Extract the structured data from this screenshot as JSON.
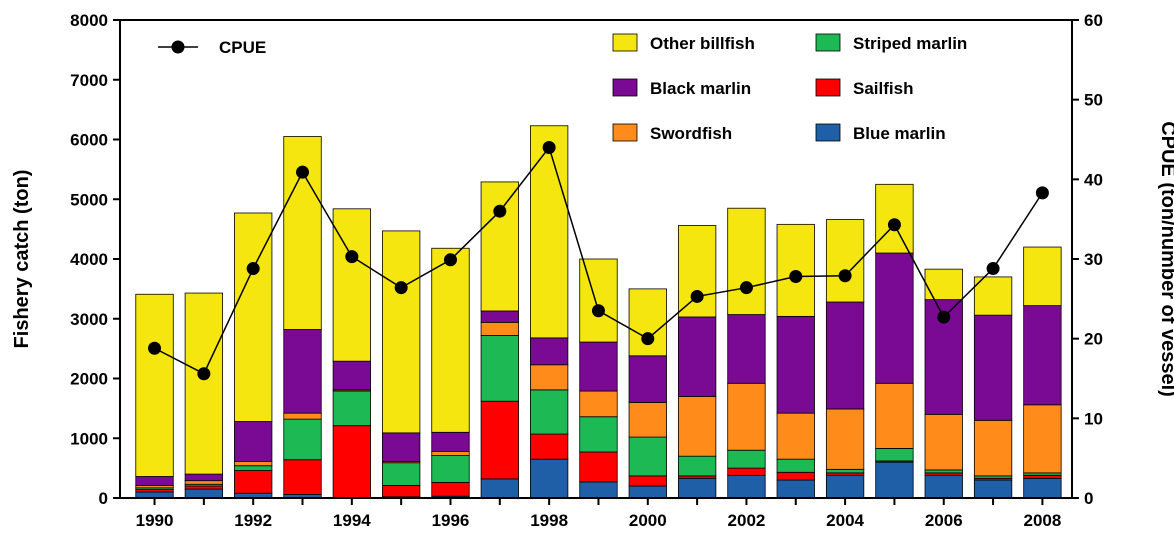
{
  "chart_data": {
    "type": "bar",
    "stacked": true,
    "x": [
      1990,
      1991,
      1992,
      1993,
      1994,
      1995,
      1996,
      1997,
      1998,
      1999,
      2000,
      2001,
      2002,
      2003,
      2004,
      2005,
      2006,
      2007,
      2008
    ],
    "x_tick_labels": [
      "1990",
      "1992",
      "1994",
      "1996",
      "1998",
      "2000",
      "2002",
      "2004",
      "2006",
      "2008"
    ],
    "ylabel": "Fishery catch (ton)",
    "ylim": [
      0,
      8000
    ],
    "y_ticks": [
      0,
      1000,
      2000,
      3000,
      4000,
      5000,
      6000,
      7000,
      8000
    ],
    "y2label": "CPUE (ton/number of vessel)",
    "y2lim": [
      0,
      60
    ],
    "y2_ticks": [
      0,
      10,
      20,
      30,
      40,
      50,
      60
    ],
    "grid": false,
    "legend_position": "top",
    "series": [
      {
        "name": "Blue marlin",
        "color": "#1f5fa8",
        "values": [
          100,
          150,
          80,
          60,
          0,
          20,
          30,
          320,
          650,
          270,
          200,
          330,
          380,
          300,
          380,
          600,
          380,
          300,
          330
        ]
      },
      {
        "name": "Sailfish",
        "color": "#ff0000",
        "values": [
          40,
          50,
          380,
          580,
          1210,
          190,
          230,
          1300,
          420,
          500,
          170,
          40,
          120,
          130,
          40,
          20,
          40,
          30,
          50
        ]
      },
      {
        "name": "Striped marlin",
        "color": "#1db954",
        "values": [
          30,
          30,
          80,
          680,
          580,
          380,
          450,
          1100,
          740,
          590,
          650,
          330,
          300,
          220,
          60,
          210,
          50,
          40,
          40
        ]
      },
      {
        "name": "Swordfish",
        "color": "#ff8c1a",
        "values": [
          40,
          60,
          70,
          100,
          20,
          20,
          70,
          220,
          420,
          430,
          580,
          1000,
          1120,
          770,
          1010,
          1090,
          930,
          930,
          1140
        ]
      },
      {
        "name": "Black marlin",
        "color": "#7a0a94",
        "values": [
          150,
          110,
          670,
          1400,
          480,
          480,
          320,
          190,
          450,
          820,
          780,
          1330,
          1150,
          1620,
          1790,
          2180,
          1920,
          1760,
          1660
        ]
      },
      {
        "name": "Other billfish",
        "color": "#f5e60f",
        "values": [
          3050,
          3030,
          3490,
          3230,
          2550,
          3380,
          3080,
          2160,
          3550,
          1390,
          1120,
          1530,
          1780,
          1540,
          1380,
          1150,
          510,
          640,
          980
        ]
      }
    ],
    "line": {
      "name": "CPUE",
      "axis": "right",
      "color": "#000000",
      "values": [
        18.8,
        15.6,
        28.8,
        40.9,
        30.3,
        26.4,
        29.9,
        36.0,
        44.0,
        23.5,
        20.0,
        25.3,
        26.4,
        27.8,
        27.9,
        34.3,
        22.7,
        28.8,
        38.3
      ]
    }
  }
}
